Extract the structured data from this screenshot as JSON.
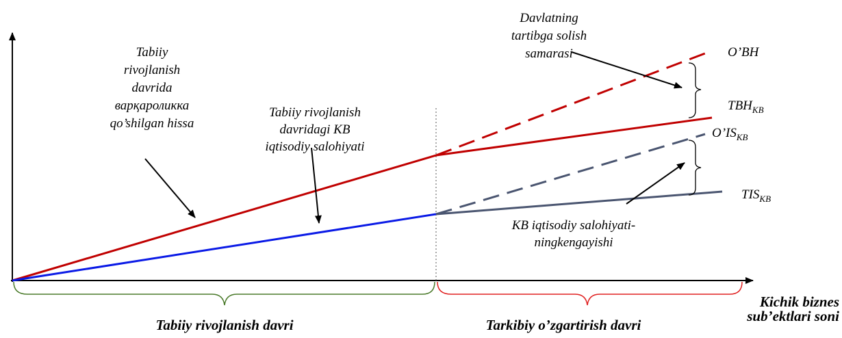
{
  "annotations": [
    {
      "lines": [
        "Tabiiy",
        "rivojlanish",
        "davrida",
        "варқароликка",
        "qo’shilgan hissa"
      ]
    },
    {
      "lines": [
        "Tabiiy rivojlanish",
        "davridagi KB",
        "iqtisodiy salohiyati"
      ]
    },
    {
      "lines": [
        "Davlatning",
        "tartibga solish",
        "samarasi"
      ]
    },
    {
      "lines": [
        "KB iqtisodiy salohiyati-",
        "ningkengayishi"
      ]
    }
  ],
  "line_labels": [
    {
      "main": "O’BH"
    },
    {
      "main": "TBH",
      "sub": "KB"
    },
    {
      "main": "O’IS",
      "sub": "KB"
    },
    {
      "main": "TIS",
      "sub": "KB"
    }
  ],
  "x_axis_label": [
    "Kichik biznes",
    "sub’ektlari soni"
  ],
  "periods": [
    "Tabiiy rivojlanish davri",
    "Tarkibiy o’zgartirish davri"
  ]
}
